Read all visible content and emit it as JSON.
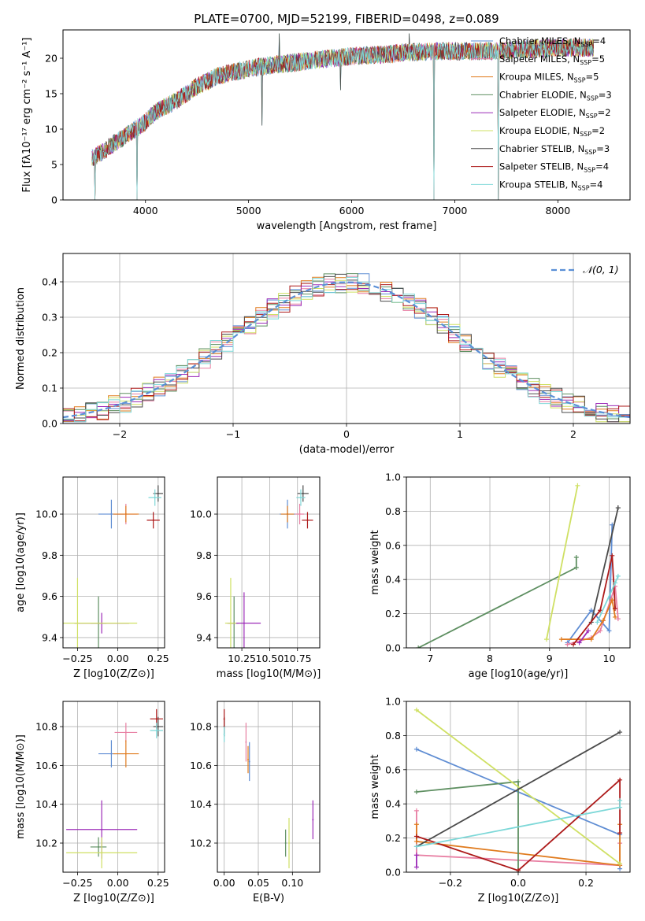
{
  "colors": {
    "chabrier_miles": "#5f8dd3",
    "salpeter_miles": "#e87fa3",
    "kroupa_miles": "#e07b1e",
    "chabrier_elodie": "#5e8f61",
    "salpeter_elodie": "#9c2bb8",
    "kroupa_elodie": "#cfe063",
    "chabrier_stelib": "#4a4a4a",
    "salpeter_stelib": "#ad1a1a",
    "kroupa_stelib": "#7dd8d8",
    "gaussian": "#5a8fd6",
    "grid": "#b0b0b0"
  },
  "chart_data": [
    {
      "id": "spectrum",
      "type": "line",
      "title": "PLATE=0700, MJD=52199, FIBERID=0498, z=0.089",
      "xlabel": "wavelength [Angstrom, rest frame]",
      "ylabel": "Flux [fλ10⁻¹⁷ erg cm⁻² s⁻¹ A⁻¹]",
      "xlim": [
        3200,
        8700
      ],
      "ylim": [
        0,
        24
      ],
      "xticks": [
        4000,
        5000,
        6000,
        7000,
        8000
      ],
      "yticks": [
        0,
        5,
        10,
        15,
        20
      ],
      "grid": false,
      "legend_position": "right",
      "continuum": {
        "x": [
          3500,
          3700,
          3900,
          4000,
          4100,
          4300,
          4500,
          4700,
          5000,
          5200,
          5500,
          5800,
          6000,
          6300,
          6500,
          6800,
          7000,
          7300,
          7600,
          8000,
          8300
        ],
        "y": [
          6,
          8,
          10,
          11,
          12.5,
          14,
          16,
          17.5,
          18.5,
          19,
          19.5,
          20,
          20.3,
          20.5,
          20.8,
          21,
          21,
          21,
          21.2,
          21.5,
          21.5
        ]
      },
      "spikes": [
        {
          "x": 6800,
          "y": 0
        },
        {
          "x": 7420,
          "y": 0
        },
        {
          "x": 3510,
          "y": 0
        },
        {
          "x": 3920,
          "y": 0
        },
        {
          "x": 5300,
          "y": 23.5
        },
        {
          "x": 6560,
          "y": 23.5
        },
        {
          "x": 5130,
          "y": 10.5
        },
        {
          "x": 5890,
          "y": 15.5
        }
      ],
      "series": [
        {
          "name": "Chabrier MILES, N<sub>SSP</sub>=4",
          "label_main": "Chabrier MILES, N",
          "label_sub": "SSP",
          "label_tail": "=4",
          "color_key": "chabrier_miles"
        },
        {
          "name": "Salpeter MILES, NSSP=5",
          "label_main": "Salpeter MILES, N",
          "label_sub": "SSP",
          "label_tail": "=5",
          "color_key": "salpeter_miles"
        },
        {
          "name": "Kroupa MILES, NSSP=5",
          "label_main": "Kroupa MILES, N",
          "label_sub": "SSP",
          "label_tail": "=5",
          "color_key": "kroupa_miles"
        },
        {
          "name": "Chabrier ELODIE, NSSP=3",
          "label_main": "Chabrier ELODIE, N",
          "label_sub": "SSP",
          "label_tail": "=3",
          "color_key": "chabrier_elodie"
        },
        {
          "name": "Salpeter ELODIE, NSSP=2",
          "label_main": "Salpeter ELODIE, N",
          "label_sub": "SSP",
          "label_tail": "=2",
          "color_key": "salpeter_elodie"
        },
        {
          "name": "Kroupa ELODIE, NSSP=2",
          "label_main": "Kroupa ELODIE, N",
          "label_sub": "SSP",
          "label_tail": "=2",
          "color_key": "kroupa_elodie"
        },
        {
          "name": "Chabrier STELIB, NSSP=3",
          "label_main": "Chabrier STELIB, N",
          "label_sub": "SSP",
          "label_tail": "=3",
          "color_key": "chabrier_stelib"
        },
        {
          "name": "Salpeter STELIB, NSSP=4",
          "label_main": "Salpeter STELIB, N",
          "label_sub": "SSP",
          "label_tail": "=4",
          "color_key": "salpeter_stelib"
        },
        {
          "name": "Kroupa STELIB, NSSP=4",
          "label_main": "Kroupa STELIB, N",
          "label_sub": "SSP",
          "label_tail": "=4",
          "color_key": "kroupa_stelib"
        }
      ]
    },
    {
      "id": "residuals",
      "type": "line",
      "xlabel": "(data-model)/error",
      "ylabel": "Normed distribution",
      "xlim": [
        -2.5,
        2.5
      ],
      "ylim": [
        0,
        0.48
      ],
      "xticks": [
        -2,
        -1,
        0,
        1,
        2
      ],
      "yticks": [
        0.0,
        0.1,
        0.2,
        0.3,
        0.4
      ],
      "grid": true,
      "legend_position": "top-right",
      "legend_label": "𝒩(0, 1)",
      "bin_width": 0.1,
      "peaks": [
        0.36,
        0.43,
        0.45,
        0.4,
        0.47,
        0.44,
        0.38,
        0.41,
        0.42
      ]
    },
    {
      "id": "age_vs_Z",
      "type": "scatter",
      "xlabel": "Z [log10(Z/Z⊙)]",
      "ylabel": "age  [log10(age/yr)]",
      "xlim": [
        -0.34,
        0.29
      ],
      "ylim": [
        9.35,
        10.18
      ],
      "xticks": [
        -0.25,
        0.0,
        0.25
      ],
      "xticklabels": [
        "−0.25",
        "0.00",
        "0.25"
      ],
      "yticks": [
        9.4,
        9.6,
        9.8,
        10.0
      ],
      "yticklabels": [
        "9.4",
        "9.6",
        "9.8",
        "10.0"
      ],
      "grid": true,
      "points": [
        {
          "color_key": "chabrier_miles",
          "x": -0.04,
          "xerr": 0.08,
          "y": 10.0,
          "yerr": 0.07
        },
        {
          "color_key": "salpeter_miles",
          "x": 0.05,
          "xerr": 0.07,
          "y": 10.0,
          "yerr": 0.05
        },
        {
          "color_key": "kroupa_miles",
          "x": 0.05,
          "xerr": 0.08,
          "y": 10.0,
          "yerr": 0.04
        },
        {
          "color_key": "chabrier_elodie",
          "x": -0.12,
          "xerr": 0.05,
          "y": 9.47,
          "yerr": 0.13
        },
        {
          "color_key": "salpeter_elodie",
          "x": -0.1,
          "xerr": 0.17,
          "y": 9.47,
          "yerr": 0.05
        },
        {
          "color_key": "kroupa_elodie",
          "x": -0.25,
          "xerr": 0.37,
          "y": 9.47,
          "yerr": 0.22
        },
        {
          "color_key": "chabrier_stelib",
          "x": 0.25,
          "xerr": 0.03,
          "y": 10.1,
          "yerr": 0.04
        },
        {
          "color_key": "salpeter_stelib",
          "x": 0.22,
          "xerr": 0.04,
          "y": 9.97,
          "yerr": 0.04
        },
        {
          "color_key": "kroupa_stelib",
          "x": 0.23,
          "xerr": 0.04,
          "y": 10.08,
          "yerr": 0.04
        }
      ]
    },
    {
      "id": "age_vs_mass",
      "type": "scatter",
      "xlabel": "mass [log10(M/M⊙)]",
      "ylabel": "",
      "xlim": [
        10.03,
        10.95
      ],
      "ylim": [
        9.35,
        10.18
      ],
      "xticks": [
        10.25,
        10.5,
        10.75
      ],
      "xticklabels": [
        "10.25",
        "10.50",
        "10.75"
      ],
      "yticks": [
        9.4,
        9.6,
        9.8,
        10.0
      ],
      "yticklabels": [
        "9.4",
        "9.6",
        "9.8",
        "10.0"
      ],
      "grid": true,
      "points": [
        {
          "color_key": "chabrier_miles",
          "x": 10.66,
          "xerr": 0.07,
          "y": 10.0,
          "yerr": 0.07
        },
        {
          "color_key": "salpeter_miles",
          "x": 10.77,
          "xerr": 0.04,
          "y": 10.0,
          "yerr": 0.05
        },
        {
          "color_key": "kroupa_miles",
          "x": 10.66,
          "xerr": 0.06,
          "y": 10.0,
          "yerr": 0.04
        },
        {
          "color_key": "chabrier_elodie",
          "x": 10.18,
          "xerr": 0.04,
          "y": 9.47,
          "yerr": 0.13
        },
        {
          "color_key": "salpeter_elodie",
          "x": 10.27,
          "xerr": 0.15,
          "y": 9.47,
          "yerr": 0.15
        },
        {
          "color_key": "kroupa_elodie",
          "x": 10.15,
          "xerr": 0.05,
          "y": 9.47,
          "yerr": 0.22
        },
        {
          "color_key": "chabrier_stelib",
          "x": 10.8,
          "xerr": 0.05,
          "y": 10.1,
          "yerr": 0.04
        },
        {
          "color_key": "salpeter_stelib",
          "x": 10.84,
          "xerr": 0.05,
          "y": 9.97,
          "yerr": 0.04
        },
        {
          "color_key": "kroupa_stelib",
          "x": 10.78,
          "xerr": 0.04,
          "y": 10.08,
          "yerr": 0.04
        }
      ]
    },
    {
      "id": "mass_weight_vs_age",
      "type": "line",
      "xlabel": "age  [log10(age/yr)]",
      "ylabel": "mass weight",
      "xlim": [
        6.6,
        10.35
      ],
      "ylim": [
        0,
        1
      ],
      "xticks": [
        7,
        8,
        9,
        10
      ],
      "xticklabels": [
        "7",
        "8",
        "9",
        "10"
      ],
      "yticks": [
        0.0,
        0.2,
        0.4,
        0.6,
        0.8,
        1.0
      ],
      "yticklabels": [
        "0.0",
        "0.2",
        "0.4",
        "0.6",
        "0.8",
        "1.0"
      ],
      "grid": true,
      "series": [
        {
          "color_key": "chabrier_miles",
          "x": [
            9.3,
            9.7,
            10.0,
            10.05
          ],
          "y": [
            0.03,
            0.22,
            0.1,
            0.72
          ]
        },
        {
          "color_key": "salpeter_miles",
          "x": [
            9.3,
            9.7,
            9.85,
            10.1,
            10.15
          ],
          "y": [
            0.02,
            0.06,
            0.1,
            0.36,
            0.17
          ]
        },
        {
          "color_key": "kroupa_miles",
          "x": [
            9.2,
            9.7,
            9.9,
            10.05,
            10.1
          ],
          "y": [
            0.05,
            0.05,
            0.16,
            0.28,
            0.18
          ]
        },
        {
          "color_key": "chabrier_elodie",
          "x": [
            6.8,
            9.45,
            9.45
          ],
          "y": [
            0.0,
            0.47,
            0.53
          ]
        },
        {
          "color_key": "salpeter_elodie",
          "x": [
            9.5,
            9.65
          ],
          "y": [
            0.03,
            0.1
          ]
        },
        {
          "color_key": "kroupa_elodie",
          "x": [
            8.95,
            9.47
          ],
          "y": [
            0.05,
            0.95
          ]
        },
        {
          "color_key": "chabrier_stelib",
          "x": [
            9.7,
            10.15,
            10.15
          ],
          "y": [
            0.15,
            0.82,
            0.82
          ]
        },
        {
          "color_key": "salpeter_stelib",
          "x": [
            9.4,
            9.85,
            10.05,
            10.1
          ],
          "y": [
            0.02,
            0.22,
            0.54,
            0.23
          ]
        },
        {
          "color_key": "kroupa_stelib",
          "x": [
            9.8,
            10.1,
            10.15
          ],
          "y": [
            0.15,
            0.38,
            0.42
          ]
        }
      ]
    },
    {
      "id": "mass_vs_Z",
      "type": "scatter",
      "xlabel": "Z [log10(Z/Z⊙)]",
      "ylabel": "mass [log10(M/M⊙)]",
      "xlim": [
        -0.34,
        0.29
      ],
      "ylim": [
        10.05,
        10.93
      ],
      "xticks": [
        -0.25,
        0.0,
        0.25
      ],
      "xticklabels": [
        "−0.25",
        "0.00",
        "0.25"
      ],
      "yticks": [
        10.2,
        10.4,
        10.6,
        10.8
      ],
      "yticklabels": [
        "10.2",
        "10.4",
        "10.6",
        "10.8"
      ],
      "grid": true,
      "points": [
        {
          "color_key": "chabrier_miles",
          "x": -0.04,
          "xerr": 0.08,
          "y": 10.66,
          "yerr": 0.07
        },
        {
          "color_key": "salpeter_miles",
          "x": 0.05,
          "xerr": 0.07,
          "y": 10.77,
          "yerr": 0.05
        },
        {
          "color_key": "kroupa_miles",
          "x": 0.05,
          "xerr": 0.08,
          "y": 10.66,
          "yerr": 0.07
        },
        {
          "color_key": "chabrier_elodie",
          "x": -0.12,
          "xerr": 0.05,
          "y": 10.18,
          "yerr": 0.05
        },
        {
          "color_key": "salpeter_elodie",
          "x": -0.1,
          "xerr": 0.22,
          "y": 10.27,
          "yerr": 0.15
        },
        {
          "color_key": "kroupa_elodie",
          "x": -0.1,
          "xerr": 0.22,
          "y": 10.15,
          "yerr": 0.08
        },
        {
          "color_key": "chabrier_stelib",
          "x": 0.25,
          "xerr": 0.03,
          "y": 10.8,
          "yerr": 0.05
        },
        {
          "color_key": "salpeter_stelib",
          "x": 0.24,
          "xerr": 0.04,
          "y": 10.84,
          "yerr": 0.05
        },
        {
          "color_key": "kroupa_stelib",
          "x": 0.24,
          "xerr": 0.04,
          "y": 10.78,
          "yerr": 0.04
        }
      ]
    },
    {
      "id": "mass_vs_ebv",
      "type": "scatter",
      "xlabel": "E(B-V)",
      "ylabel": "",
      "xlim": [
        -0.01,
        0.14
      ],
      "ylim": [
        10.05,
        10.93
      ],
      "xticks": [
        0.0,
        0.05,
        0.1
      ],
      "xticklabels": [
        "0.00",
        "0.05",
        "0.10"
      ],
      "yticks": [
        10.2,
        10.4,
        10.6,
        10.8
      ],
      "yticklabels": [
        "10.2",
        "10.4",
        "10.6",
        "10.8"
      ],
      "grid": true,
      "points": [
        {
          "color_key": "chabrier_miles",
          "x": 0.037,
          "xerr": 0,
          "y": 10.62,
          "yerr": 0.1
        },
        {
          "color_key": "salpeter_miles",
          "x": 0.032,
          "xerr": 0,
          "y": 10.72,
          "yerr": 0.1
        },
        {
          "color_key": "kroupa_miles",
          "x": 0.035,
          "xerr": 0,
          "y": 10.63,
          "yerr": 0.07
        },
        {
          "color_key": "chabrier_elodie",
          "x": 0.09,
          "xerr": 0,
          "y": 10.2,
          "yerr": 0.07
        },
        {
          "color_key": "salpeter_elodie",
          "x": 0.13,
          "xerr": 0,
          "y": 10.32,
          "yerr": 0.1
        },
        {
          "color_key": "kroupa_elodie",
          "x": 0.095,
          "xerr": 0,
          "y": 10.2,
          "yerr": 0.13
        },
        {
          "color_key": "chabrier_stelib",
          "x": 0.0,
          "xerr": 0,
          "y": 10.8,
          "yerr": 0.05
        },
        {
          "color_key": "salpeter_stelib",
          "x": 0.0,
          "xerr": 0,
          "y": 10.84,
          "yerr": 0.05
        },
        {
          "color_key": "kroupa_stelib",
          "x": 0.0,
          "xerr": 0,
          "y": 10.76,
          "yerr": 0.04
        }
      ]
    },
    {
      "id": "mass_weight_vs_Z",
      "type": "line",
      "xlabel": "Z [log10(Z/Z⊙)]",
      "ylabel": "mass weight",
      "xlim": [
        -0.33,
        0.33
      ],
      "ylim": [
        0,
        1
      ],
      "xticks": [
        -0.2,
        0.0,
        0.2
      ],
      "xticklabels": [
        "−0.2",
        "0.0",
        "0.2"
      ],
      "yticks": [
        0.0,
        0.2,
        0.4,
        0.6,
        0.8,
        1.0
      ],
      "yticklabels": [
        "0.0",
        "0.2",
        "0.4",
        "0.6",
        "0.8",
        "1.0"
      ],
      "grid": true,
      "series": [
        {
          "color_key": "chabrier_miles",
          "x": [
            -0.3,
            0.3,
            0.3
          ],
          "y": [
            0.72,
            0.22,
            0.02
          ]
        },
        {
          "color_key": "salpeter_miles",
          "x": [
            -0.3,
            -0.3,
            0.3,
            0.3
          ],
          "y": [
            0.36,
            0.1,
            0.04,
            0.17
          ]
        },
        {
          "color_key": "kroupa_miles",
          "x": [
            -0.3,
            -0.3,
            0.3,
            0.3
          ],
          "y": [
            0.28,
            0.18,
            0.04,
            0.28
          ]
        },
        {
          "color_key": "chabrier_elodie",
          "x": [
            -0.3,
            0.0,
            0.0
          ],
          "y": [
            0.47,
            0.53,
            0.0
          ]
        },
        {
          "color_key": "salpeter_elodie",
          "x": [
            -0.3,
            -0.3
          ],
          "y": [
            0.03,
            0.1
          ]
        },
        {
          "color_key": "kroupa_elodie",
          "x": [
            -0.3,
            0.3
          ],
          "y": [
            0.95,
            0.05
          ]
        },
        {
          "color_key": "chabrier_stelib",
          "x": [
            -0.3,
            0.3
          ],
          "y": [
            0.15,
            0.82
          ]
        },
        {
          "color_key": "salpeter_stelib",
          "x": [
            -0.3,
            0.0,
            0.3,
            0.3
          ],
          "y": [
            0.21,
            0.01,
            0.54,
            0.23
          ]
        },
        {
          "color_key": "kroupa_stelib",
          "x": [
            -0.3,
            0.3,
            0.3
          ],
          "y": [
            0.15,
            0.38,
            0.42
          ]
        }
      ]
    }
  ]
}
